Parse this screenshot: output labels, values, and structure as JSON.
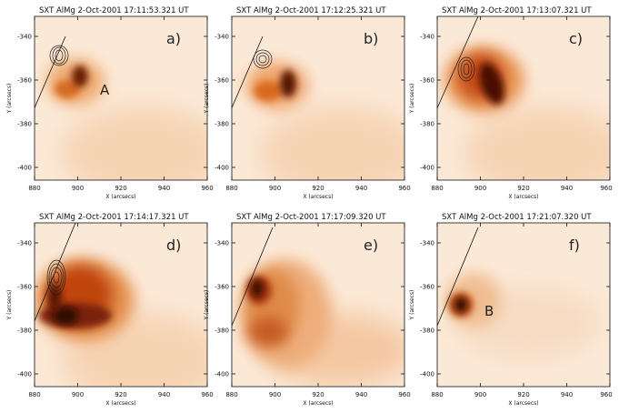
{
  "figure": {
    "x_axis_label": "X (arcsecs)",
    "y_axis_label": "Y (arcsecs)",
    "x_ticks": [
      "880",
      "900",
      "920",
      "940",
      "960"
    ],
    "y_ticks": [
      "-340",
      "-360",
      "-380",
      "-400"
    ],
    "panels": [
      {
        "title": "SXT AlMg   2-Oct-2001 17:11:53.321 UT",
        "letter": "a)",
        "annotation": "A"
      },
      {
        "title": "SXT AlMg   2-Oct-2001 17:12:25.321 UT",
        "letter": "b)",
        "annotation": ""
      },
      {
        "title": "SXT AlMg   2-Oct-2001 17:13:07.321 UT",
        "letter": "c)",
        "annotation": ""
      },
      {
        "title": "SXT AlMg   2-Oct-2001 17:14:17.321 UT",
        "letter": "d)",
        "annotation": ""
      },
      {
        "title": "SXT AlMg   2-Oct-2001 17:17:09.320 UT",
        "letter": "e)",
        "annotation": ""
      },
      {
        "title": "SXT AlMg   2-Oct-2001 17:21:07.320 UT",
        "letter": "f)",
        "annotation": "B"
      }
    ]
  }
}
